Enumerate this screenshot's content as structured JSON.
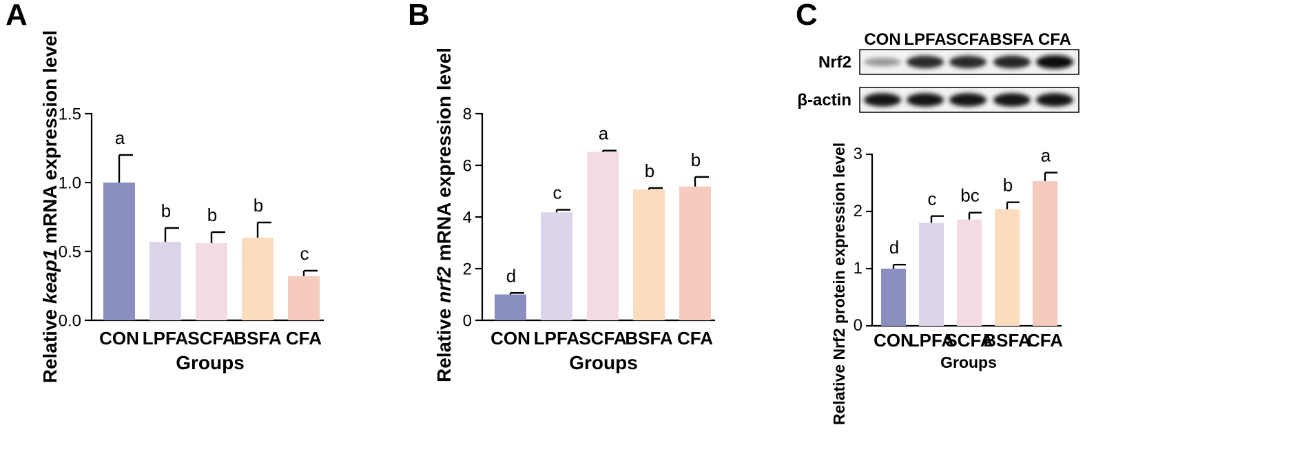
{
  "panels": [
    {
      "label": "A",
      "ylabel_parts": [
        "Relative ",
        "keap1",
        " mRNA expression level"
      ],
      "xlabel": "Groups",
      "ticks": [
        "0.0",
        "0.5",
        "1.0",
        "1.5"
      ]
    },
    {
      "label": "B",
      "ylabel_parts": [
        "Relative ",
        "nrf2",
        " mRNA expression level"
      ],
      "xlabel": "Groups",
      "ticks": [
        "0",
        "2",
        "4",
        "6",
        "8"
      ]
    },
    {
      "label": "C",
      "ylabel_parts": [
        "Relative Nrf2 protein expression level",
        "",
        ""
      ],
      "xlabel": "Groups",
      "ticks": [
        "0",
        "1",
        "2",
        "3"
      ]
    }
  ],
  "blot": {
    "lane_labels": [
      "CON",
      "LPFA",
      "SCFA",
      "BSFA",
      "CFA"
    ],
    "rows": [
      {
        "label": "Nrf2",
        "intensity": [
          0.25,
          0.85,
          0.85,
          0.88,
          1.0
        ]
      },
      {
        "label": "β-actin",
        "intensity": [
          0.95,
          0.95,
          0.95,
          0.95,
          0.95
        ]
      }
    ]
  },
  "colors": {
    "CON": "#8a8fc0",
    "LPFA": "#dcd5ea",
    "SCFA": "#f2dce2",
    "BSFA": "#fbdcbd",
    "CFA": "#f4cbbd"
  },
  "chart_data": [
    {
      "type": "bar",
      "title": "",
      "categories": [
        "CON",
        "LPFA",
        "SCFA",
        "BSFA",
        "CFA"
      ],
      "values": [
        1.0,
        0.57,
        0.56,
        0.6,
        0.32
      ],
      "errors": [
        0.2,
        0.1,
        0.08,
        0.11,
        0.04
      ],
      "significance": [
        "a",
        "b",
        "b",
        "b",
        "c"
      ],
      "xlabel": "Groups",
      "ylabel": "Relative keap1 mRNA expression level",
      "ylim": [
        0,
        1.5
      ]
    },
    {
      "type": "bar",
      "title": "",
      "categories": [
        "CON",
        "LPFA",
        "SCFA",
        "BSFA",
        "CFA"
      ],
      "values": [
        1.0,
        4.18,
        6.52,
        5.06,
        5.18
      ],
      "errors": [
        0.06,
        0.1,
        0.05,
        0.06,
        0.37
      ],
      "significance": [
        "d",
        "c",
        "a",
        "b",
        "b"
      ],
      "xlabel": "Groups",
      "ylabel": "Relative nrf2 mRNA expression level",
      "ylim": [
        0,
        8
      ]
    },
    {
      "type": "bar",
      "title": "",
      "categories": [
        "CON",
        "LPFA",
        "SCFA",
        "BSFA",
        "CFA"
      ],
      "values": [
        1.0,
        1.8,
        1.86,
        2.04,
        2.53
      ],
      "errors": [
        0.07,
        0.12,
        0.12,
        0.12,
        0.15
      ],
      "significance": [
        "d",
        "c",
        "bc",
        "b",
        "a"
      ],
      "xlabel": "Groups",
      "ylabel": "Relative Nrf2 protein expression level",
      "ylim": [
        0,
        3
      ]
    }
  ]
}
